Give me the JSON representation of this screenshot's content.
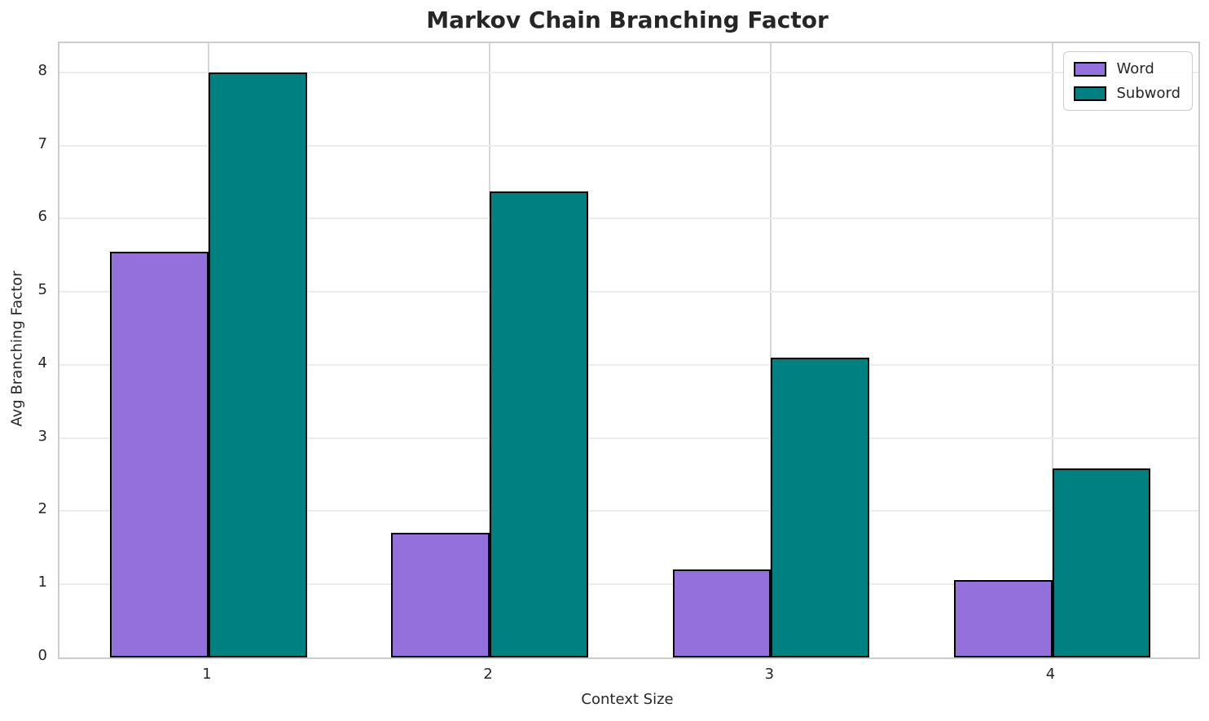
{
  "title": "Markov Chain Branching Factor",
  "chart_data": {
    "type": "bar",
    "title": "Markov Chain Branching Factor",
    "xlabel": "Context Size",
    "ylabel": "Avg Branching Factor",
    "categories": [
      "1",
      "2",
      "3",
      "4"
    ],
    "series": [
      {
        "name": "Word",
        "color": "#9370DB",
        "values": [
          5.55,
          1.7,
          1.2,
          1.06
        ]
      },
      {
        "name": "Subword",
        "color": "#008080",
        "values": [
          8.0,
          6.37,
          4.1,
          2.58
        ]
      }
    ],
    "yticks": [
      0,
      1,
      2,
      3,
      4,
      5,
      6,
      7,
      8
    ],
    "ylim": [
      0,
      8.4
    ],
    "xlim": [
      0.47,
      4.52
    ],
    "bar_width_units": 0.35,
    "grid": true,
    "legend_position": "upper right",
    "colors": {
      "bar_edge": "#000000",
      "background": "#ffffff",
      "grid_h": "#ececec",
      "grid_v": "#d6d6d6",
      "spine": "#cccccc",
      "text": "#262626"
    }
  }
}
